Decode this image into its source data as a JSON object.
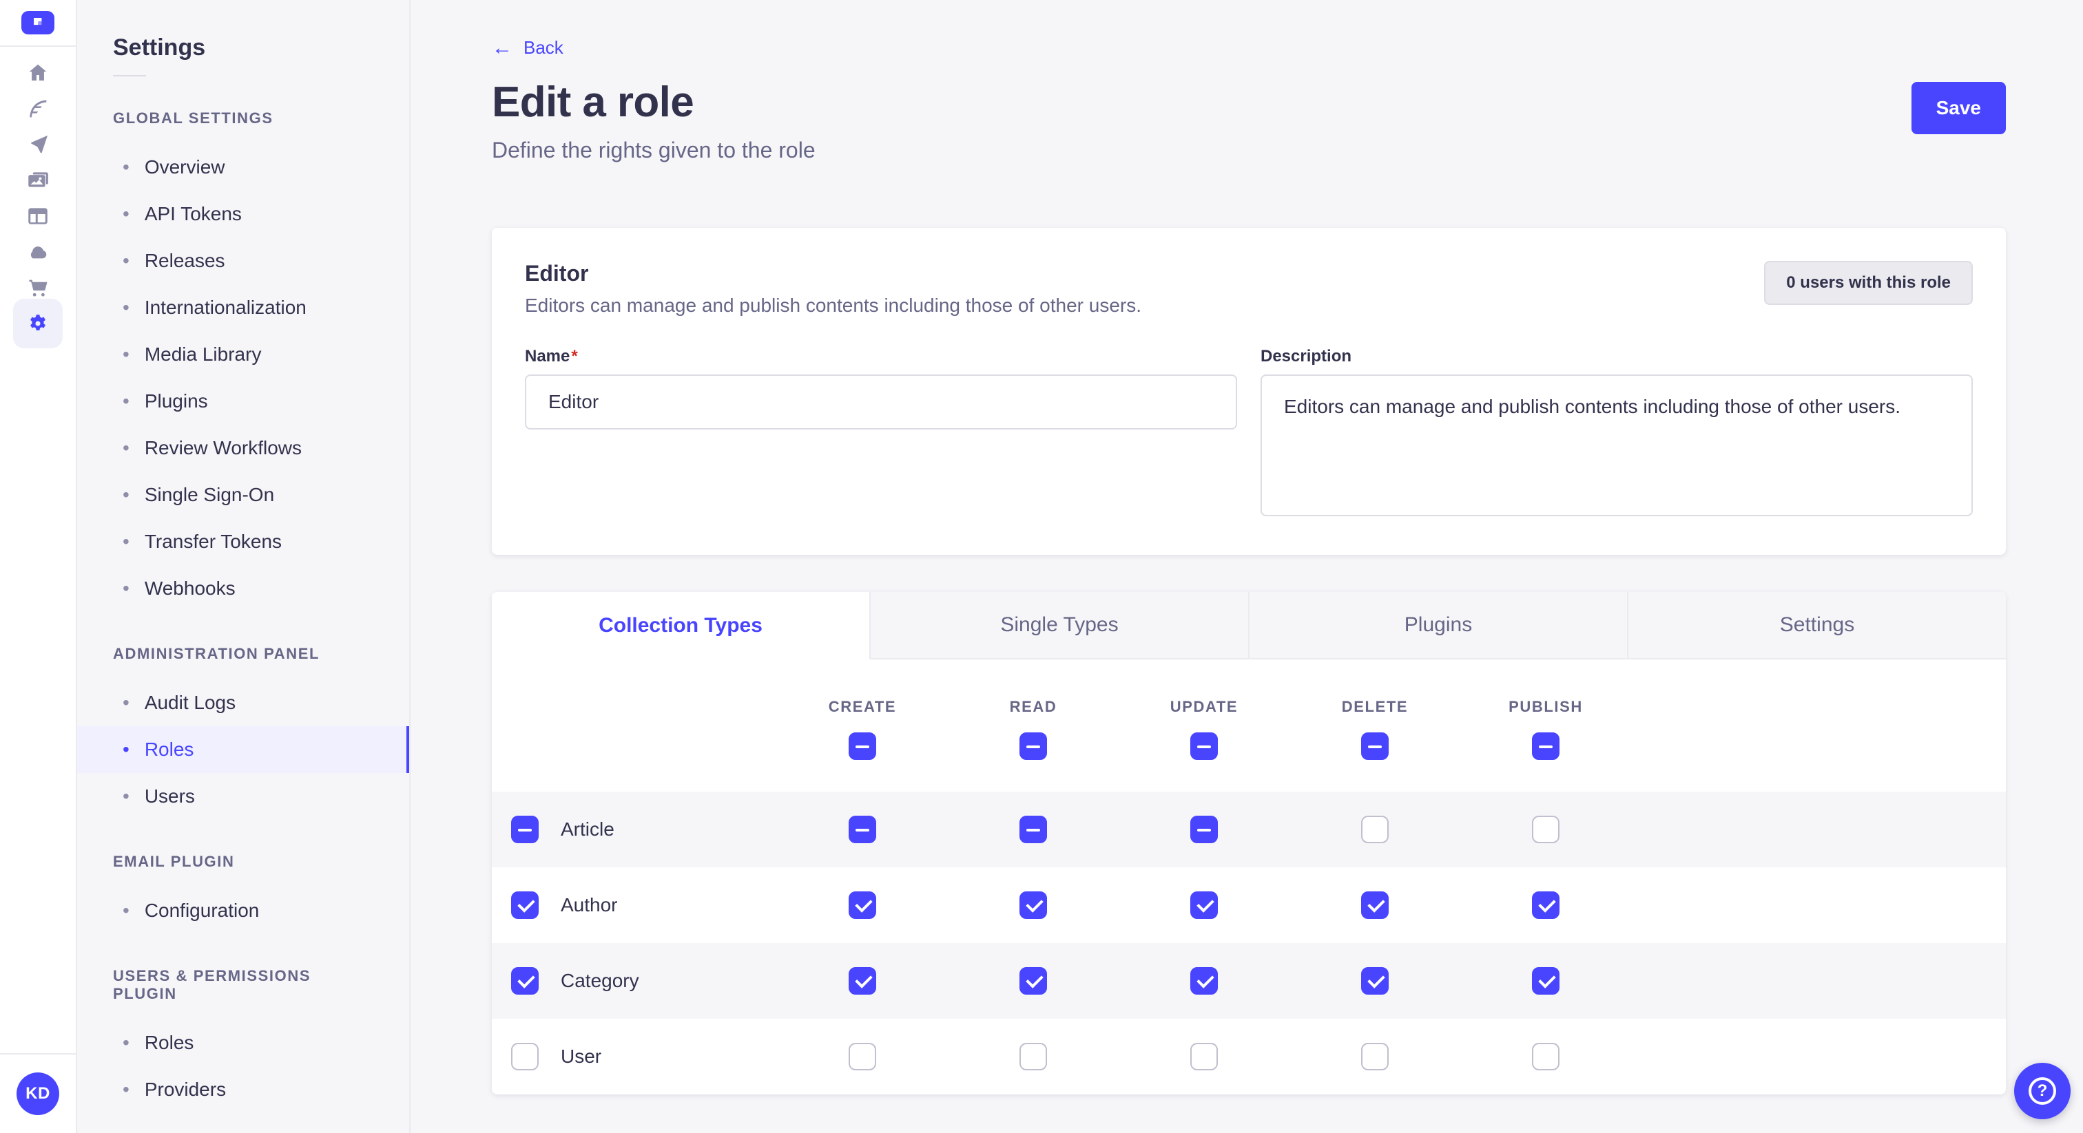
{
  "colors": {
    "primary": "#4945FF",
    "primary_light": "#F0F0FF",
    "background": "#F6F6F9",
    "card": "#FFFFFF",
    "border": "#EAEAEF",
    "input_border": "#DCDCE4",
    "text": "#32324D",
    "text_muted": "#666687",
    "danger": "#D02B20"
  },
  "iconbar": {
    "logo_icon": "strapi-logo-icon",
    "items": [
      {
        "icon": "home-icon",
        "active": false
      },
      {
        "icon": "content-manager-icon",
        "active": false
      },
      {
        "icon": "send-icon",
        "active": false
      },
      {
        "icon": "media-library-icon",
        "active": false
      },
      {
        "icon": "content-type-builder-icon",
        "active": false
      },
      {
        "icon": "cloud-icon",
        "active": false
      },
      {
        "icon": "marketplace-icon",
        "active": false
      },
      {
        "icon": "settings-icon",
        "active": true
      }
    ],
    "avatar_initials": "KD"
  },
  "subnav": {
    "title": "Settings",
    "sections": [
      {
        "label": "GLOBAL SETTINGS",
        "items": [
          {
            "label": "Overview",
            "active": false
          },
          {
            "label": "API Tokens",
            "active": false
          },
          {
            "label": "Releases",
            "active": false
          },
          {
            "label": "Internationalization",
            "active": false
          },
          {
            "label": "Media Library",
            "active": false
          },
          {
            "label": "Plugins",
            "active": false
          },
          {
            "label": "Review Workflows",
            "active": false
          },
          {
            "label": "Single Sign-On",
            "active": false
          },
          {
            "label": "Transfer Tokens",
            "active": false
          },
          {
            "label": "Webhooks",
            "active": false
          }
        ]
      },
      {
        "label": "ADMINISTRATION PANEL",
        "items": [
          {
            "label": "Audit Logs",
            "active": false
          },
          {
            "label": "Roles",
            "active": true
          },
          {
            "label": "Users",
            "active": false
          }
        ]
      },
      {
        "label": "EMAIL PLUGIN",
        "items": [
          {
            "label": "Configuration",
            "active": false
          }
        ]
      },
      {
        "label": "USERS & PERMISSIONS PLUGIN",
        "items": [
          {
            "label": "Roles",
            "active": false
          },
          {
            "label": "Providers",
            "active": false
          }
        ]
      }
    ]
  },
  "header": {
    "back_label": "Back",
    "back_arrow": "←",
    "title": "Edit a role",
    "subtitle": "Define the rights given to the role",
    "save_label": "Save"
  },
  "role_card": {
    "role_name": "Editor",
    "role_description": "Editors can manage and publish contents including those of other users.",
    "users_badge": "0 users with this role",
    "name_label": "Name",
    "name_required_mark": "*",
    "name_value": "Editor",
    "description_label": "Description",
    "description_value": "Editors can manage and publish contents including those of other users."
  },
  "permissions": {
    "tabs": [
      "Collection Types",
      "Single Types",
      "Plugins",
      "Settings"
    ],
    "active_tab": "Collection Types",
    "columns": [
      "CREATE",
      "READ",
      "UPDATE",
      "DELETE",
      "PUBLISH"
    ],
    "select_all_states": [
      "indeterminate",
      "indeterminate",
      "indeterminate",
      "indeterminate",
      "indeterminate"
    ],
    "rows": [
      {
        "label": "Article",
        "row_state": "indeterminate",
        "cells": [
          "indeterminate",
          "indeterminate",
          "indeterminate",
          "unchecked",
          "unchecked"
        ]
      },
      {
        "label": "Author",
        "row_state": "checked",
        "cells": [
          "checked",
          "checked",
          "checked",
          "checked",
          "checked"
        ]
      },
      {
        "label": "Category",
        "row_state": "checked",
        "cells": [
          "checked",
          "checked",
          "checked",
          "checked",
          "checked"
        ]
      },
      {
        "label": "User",
        "row_state": "unchecked",
        "cells": [
          "unchecked",
          "unchecked",
          "unchecked",
          "unchecked",
          "unchecked"
        ]
      }
    ]
  },
  "help_button": {
    "icon": "question-mark-icon"
  }
}
